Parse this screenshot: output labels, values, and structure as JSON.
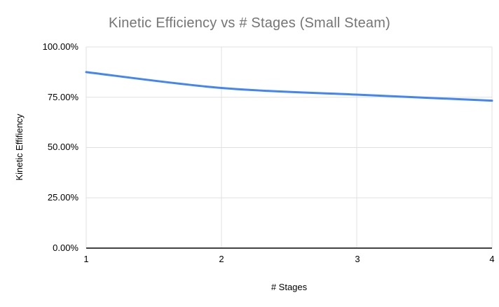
{
  "chart_data": {
    "type": "line",
    "title": "Kinetic Efficiency vs # Stages (Small Steam)",
    "xlabel": "# Stages",
    "ylabel": "Kinetic Effifiency",
    "x": [
      1,
      2,
      3,
      4
    ],
    "series": [
      {
        "name": "Kinetic Efficiency",
        "values_percent": [
          87.5,
          79.6,
          76.3,
          73.3
        ],
        "color": "#4285f4",
        "smooth": true,
        "line_width": 3
      }
    ],
    "ylim_percent": [
      0,
      100
    ],
    "ytick_values_percent": [
      100,
      75,
      50,
      25,
      0
    ],
    "ytick_labels": [
      "100.00%",
      "75.00%",
      "50.00%",
      "25.00%",
      "0.00%"
    ],
    "xtick_labels": [
      "1",
      "2",
      "3",
      "4"
    ],
    "grid": true,
    "legend": "none",
    "background_color": "#ffffff",
    "title_color": "#757575",
    "grid_color": "#e0e0e0",
    "axis_line_color": "#424242",
    "tick_label_color": "#000000"
  }
}
